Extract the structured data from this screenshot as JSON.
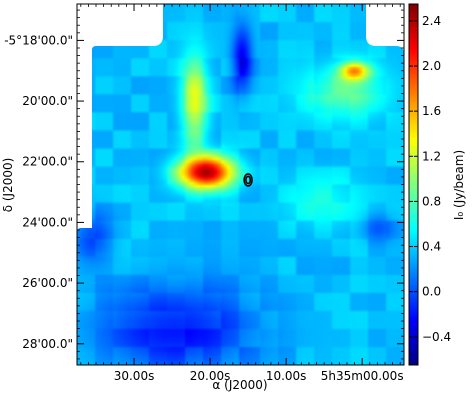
{
  "chart_data": {
    "type": "heatmap",
    "title": "",
    "xlabel": "α (J2000)",
    "ylabel": "δ (J2000)",
    "x_ticks": [
      "30.00s",
      "20.00s",
      "10.00s",
      "5h35m00.00s"
    ],
    "y_ticks": [
      "-5°18'00.0\"",
      "20'00.0\"",
      "22'00.0\"",
      "24'00.0\"",
      "26'00.0\"",
      "28'00.0\""
    ],
    "colorbar": {
      "label": "I₀ (Jy/beam)",
      "ticks": [
        "2.4",
        "2.0",
        "1.6",
        "1.2",
        "0.8",
        "0.4",
        "0.0",
        "−0.4"
      ],
      "tick_values": [
        2.4,
        2.0,
        1.6,
        1.2,
        0.8,
        0.4,
        0.0,
        -0.4
      ],
      "range": [
        -0.65,
        2.55
      ],
      "colormap": "jet"
    },
    "ra_range_seconds": [
      37.5,
      -5.5
    ],
    "dec_range_arcmin": [
      -16.8,
      -28.7
    ],
    "features": [
      {
        "ra_s": 20.5,
        "dec_arcmin": -22.35,
        "peak": 2.4,
        "description": "brightest clump"
      },
      {
        "ra_s": 1.0,
        "dec_arcmin": -19.0,
        "peak": 1.55,
        "description": "secondary clump"
      },
      {
        "ra_s": 15.8,
        "dec_arcmin": -18.6,
        "peak": -0.3,
        "description": "negative trough"
      }
    ],
    "marker": {
      "ra_s": 15.0,
      "dec_arcmin": -22.6,
      "shape": "ellipse",
      "color": "#000000"
    },
    "background_level": 0.35
  },
  "colors": {
    "background": "#ffffff",
    "frame": "#000000",
    "contour": "#000000"
  }
}
